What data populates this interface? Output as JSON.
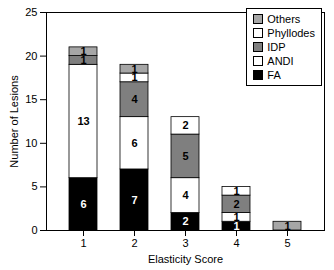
{
  "chart_data": {
    "type": "bar",
    "stacked": true,
    "data_labels": true,
    "legend": "top-right",
    "x_label": "Elasticity Score",
    "y_label": "Number of Lesions",
    "categories": [
      1,
      2,
      3,
      4,
      5
    ],
    "series": [
      {
        "name": "FA",
        "color": "#000000",
        "values": [
          6,
          7,
          2,
          1,
          0
        ]
      },
      {
        "name": "ANDI",
        "color": "#ffffff",
        "values": [
          13,
          6,
          4,
          1,
          0
        ]
      },
      {
        "name": "IDP",
        "color": "#7f7f7f",
        "values": [
          1,
          4,
          5,
          2,
          0
        ]
      },
      {
        "name": "Phyllodes",
        "color": "#ffffff",
        "values": [
          0,
          1,
          2,
          1,
          0
        ]
      },
      {
        "name": "Others",
        "color": "#a6a6a6",
        "values": [
          1,
          1,
          0,
          0,
          1
        ]
      }
    ],
    "ylim": [
      0,
      25
    ],
    "yticks": [
      0,
      5,
      10,
      15,
      20,
      25
    ]
  }
}
